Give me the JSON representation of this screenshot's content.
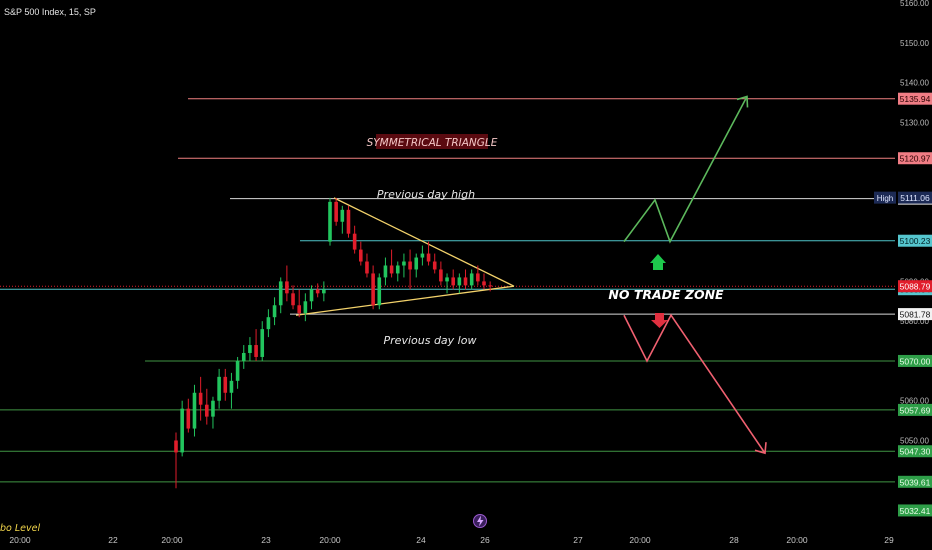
{
  "header": {
    "symbol_title": "S&P 500 Index, 15, SP"
  },
  "footer": {
    "clipped_label": "bo Level",
    "event_icon": "lightning-icon"
  },
  "colors": {
    "up": "#22c55e",
    "down": "#e11d2b",
    "triangle": "#f3d26b",
    "resistance": "#f08080",
    "support": "#4caf50",
    "white_line": "#d9d9d9",
    "cyan_line": "#4fc3c7",
    "bull_arrow": "#5cb85c",
    "bear_arrow": "#f06070"
  },
  "annotations": {
    "pattern_title": "SYMMETRICAL TRIANGLE",
    "prev_high": "Previous day high",
    "prev_low": "Previous day low",
    "no_trade": "NO TRADE ZONE"
  },
  "chart_data": {
    "type": "candlestick",
    "ylim": [
      5028.5,
      5160
    ],
    "y_ticks": [
      5160,
      5150,
      5140,
      5130,
      5120,
      5110,
      5100,
      5090,
      5080,
      5070,
      5060,
      5050
    ],
    "x_ticks": [
      "20:00",
      "22",
      "20:00",
      "23",
      "20:00",
      "24",
      "26",
      "27",
      "20:00",
      "28",
      "20:00",
      "29"
    ],
    "levels": [
      {
        "value": 5135.94,
        "label": "5135.94",
        "kind": "resistance"
      },
      {
        "value": 5120.97,
        "label": "5120.97",
        "kind": "resistance"
      },
      {
        "value": 5110.82,
        "label": "5110.82",
        "kind": "white"
      },
      {
        "value": 5100.23,
        "label": "5100.23",
        "kind": "cyan"
      },
      {
        "value": 5088.04,
        "label": "5088.04",
        "kind": "cyan"
      },
      {
        "value": 5081.78,
        "label": "5081.78",
        "kind": "white"
      },
      {
        "value": 5070.0,
        "label": "5070.00",
        "kind": "support"
      },
      {
        "value": 5057.69,
        "label": "5057.69",
        "kind": "support"
      },
      {
        "value": 5047.3,
        "label": "5047.30",
        "kind": "support"
      },
      {
        "value": 5039.61,
        "label": "5039.61",
        "kind": "support"
      },
      {
        "value": 5032.41,
        "label": "5032.41",
        "kind": "support_tag"
      }
    ],
    "high_marker": {
      "name": "High",
      "value": 5111.06,
      "label": "5111.06"
    },
    "last_price": {
      "value": 5088.79,
      "label": "5088.79"
    },
    "triangle": {
      "apex": 5088.8,
      "upper_start": 5111.0,
      "lower_start": 5081.5
    },
    "bull_path": [
      5100.0,
      5110.5,
      5100.0,
      5136.5
    ],
    "bear_path": [
      5081.5,
      5070.0,
      5081.5,
      5046.8
    ],
    "candles": [
      [
        5050.0,
        5052.0,
        5038.0,
        5047.0
      ],
      [
        5047.0,
        5060.0,
        5046.0,
        5058.0
      ],
      [
        5058.0,
        5060.5,
        5052.0,
        5053.0
      ],
      [
        5053.0,
        5064.0,
        5051.0,
        5062.0
      ],
      [
        5062.0,
        5066.0,
        5055.0,
        5059.0
      ],
      [
        5059.0,
        5063.0,
        5054.0,
        5056.0
      ],
      [
        5056.0,
        5061.0,
        5053.0,
        5060.0
      ],
      [
        5060.0,
        5068.0,
        5058.0,
        5066.0
      ],
      [
        5066.0,
        5068.0,
        5060.0,
        5062.0
      ],
      [
        5062.0,
        5067.0,
        5058.0,
        5065.0
      ],
      [
        5065.0,
        5071.0,
        5063.0,
        5070.0
      ],
      [
        5070.0,
        5074.0,
        5068.0,
        5072.0
      ],
      [
        5072.0,
        5076.0,
        5070.0,
        5074.0
      ],
      [
        5074.0,
        5078.0,
        5070.0,
        5071.0
      ],
      [
        5071.0,
        5080.0,
        5070.0,
        5078.0
      ],
      [
        5078.0,
        5083.0,
        5076.0,
        5081.0
      ],
      [
        5081.0,
        5086.0,
        5079.0,
        5084.0
      ],
      [
        5084.0,
        5091.0,
        5082.0,
        5090.0
      ],
      [
        5090.0,
        5094.0,
        5085.0,
        5087.0
      ],
      [
        5087.0,
        5089.0,
        5083.0,
        5084.0
      ],
      [
        5084.0,
        5088.0,
        5081.0,
        5082.0
      ],
      [
        5082.0,
        5087.0,
        5080.0,
        5085.0
      ],
      [
        5085.0,
        5089.0,
        5083.0,
        5088.0
      ],
      [
        5088.0,
        5089.5,
        5086.0,
        5087.0
      ],
      [
        5087.0,
        5090.0,
        5085.0,
        5088.0
      ],
      [
        5100.0,
        5111.0,
        5099.0,
        5110.0
      ],
      [
        5110.0,
        5111.0,
        5104.0,
        5105.0
      ],
      [
        5105.0,
        5109.0,
        5102.0,
        5108.0
      ],
      [
        5108.0,
        5109.0,
        5101.0,
        5102.0
      ],
      [
        5102.0,
        5104.0,
        5097.0,
        5098.0
      ],
      [
        5098.0,
        5100.0,
        5094.0,
        5095.0
      ],
      [
        5095.0,
        5097.0,
        5091.0,
        5092.0
      ],
      [
        5092.0,
        5094.0,
        5083.0,
        5084.0
      ],
      [
        5084.0,
        5092.0,
        5083.0,
        5091.0
      ],
      [
        5091.0,
        5096.0,
        5089.0,
        5094.0
      ],
      [
        5094.0,
        5098.0,
        5091.0,
        5092.0
      ],
      [
        5092.0,
        5095.0,
        5090.0,
        5094.0
      ],
      [
        5094.0,
        5097.0,
        5091.0,
        5095.0
      ],
      [
        5095.0,
        5098.0,
        5088.0,
        5093.0
      ],
      [
        5093.0,
        5097.0,
        5091.0,
        5096.0
      ],
      [
        5096.0,
        5099.0,
        5094.0,
        5097.0
      ],
      [
        5097.0,
        5100.0,
        5094.0,
        5095.0
      ],
      [
        5095.0,
        5097.0,
        5092.0,
        5093.0
      ],
      [
        5093.0,
        5095.0,
        5089.0,
        5090.0
      ],
      [
        5090.0,
        5092.0,
        5087.0,
        5091.0
      ],
      [
        5091.0,
        5093.0,
        5088.0,
        5089.0
      ],
      [
        5089.0,
        5092.0,
        5087.0,
        5091.0
      ],
      [
        5091.0,
        5093.0,
        5088.0,
        5089.0
      ],
      [
        5089.0,
        5093.0,
        5088.0,
        5092.0
      ],
      [
        5092.0,
        5094.0,
        5089.0,
        5090.0
      ],
      [
        5090.0,
        5092.0,
        5088.0,
        5089.0
      ],
      [
        5089.0,
        5090.0,
        5087.5,
        5088.8
      ]
    ]
  }
}
